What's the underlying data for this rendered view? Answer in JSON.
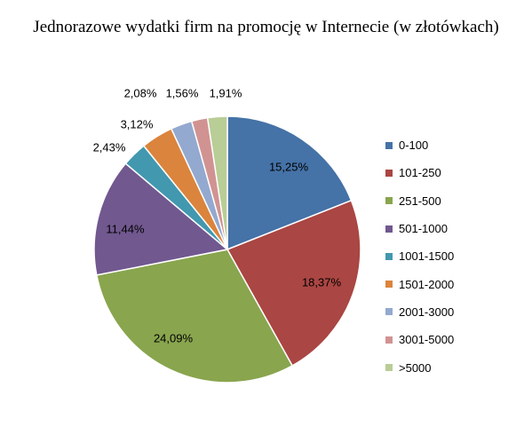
{
  "chart_data": {
    "type": "pie",
    "title": "Jednorazowe wydatki firm na promocję w Internecie (w złotówkach)",
    "categories": [
      "0-100",
      "101-250",
      "251-500",
      "501-1000",
      "1001-1500",
      "1501-2000",
      "2001-3000",
      "3001-5000",
      ">5000"
    ],
    "values": [
      15.25,
      18.37,
      24.09,
      11.44,
      2.43,
      3.12,
      2.08,
      1.56,
      1.91
    ],
    "value_labels": [
      "15,25%",
      "18,37%",
      "24,09%",
      "11,44%",
      "2,43%",
      "3,12%",
      "2,08%",
      "1,56%",
      "1,91%"
    ],
    "colors": [
      "#4572A7",
      "#AA4643",
      "#89A54E",
      "#71588F",
      "#4198AF",
      "#DB843D",
      "#93A9CF",
      "#D19392",
      "#B9CD96"
    ],
    "legend_position": "right"
  }
}
